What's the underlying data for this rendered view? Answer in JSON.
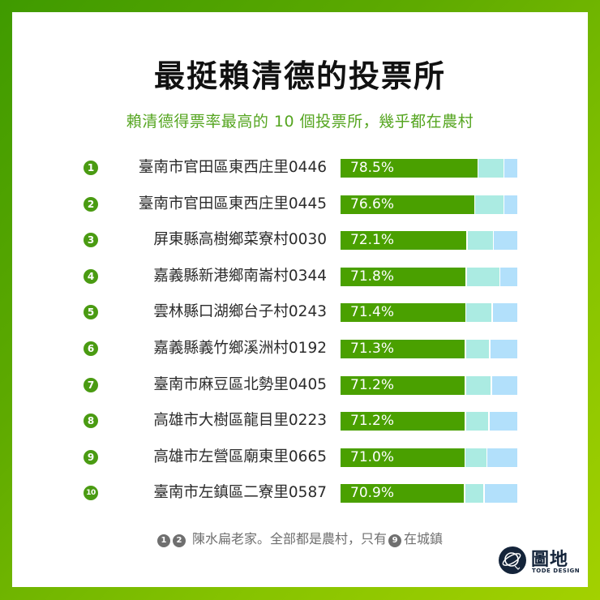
{
  "header": {
    "title": "最挺賴清德的投票所",
    "subtitle": "賴清德得票率最高的 10 個投票所，幾乎都在農村"
  },
  "colors": {
    "primary_green": "#4aa000",
    "teal_segment": "#abebe2",
    "blue_segment": "#b2e0fb",
    "rank_badge": "#4a9b12",
    "subtitle": "#55a520",
    "border_gradient_start": "#3f9a00",
    "border_gradient_end": "#a3d100",
    "logo_navy": "#14243a"
  },
  "rows": [
    {
      "rank": "1",
      "name": "臺南市官田區東西庄里0446",
      "pct_label": "78.5%"
    },
    {
      "rank": "2",
      "name": "臺南市官田區東西庄里0445",
      "pct_label": "76.6%"
    },
    {
      "rank": "3",
      "name": "屏東縣高樹鄉菜寮村0030",
      "pct_label": "72.1%"
    },
    {
      "rank": "4",
      "name": "嘉義縣新港鄉南崙村0344",
      "pct_label": "71.8%"
    },
    {
      "rank": "5",
      "name": "雲林縣口湖鄉台子村0243",
      "pct_label": "71.4%"
    },
    {
      "rank": "6",
      "name": "嘉義縣義竹鄉溪洲村0192",
      "pct_label": "71.3%"
    },
    {
      "rank": "7",
      "name": "臺南市麻豆區北勢里0405",
      "pct_label": "71.2%"
    },
    {
      "rank": "8",
      "name": "高雄市大樹區龍目里0223",
      "pct_label": "71.2%"
    },
    {
      "rank": "9",
      "name": "高雄市左營區廟東里0665",
      "pct_label": "71.0%"
    },
    {
      "rank": "10",
      "name": "臺南市左鎮區二寮里0587",
      "pct_label": "70.9%"
    }
  ],
  "chart_data": {
    "type": "bar",
    "orientation": "horizontal",
    "stacked": true,
    "title": "最挺賴清德的投票所",
    "subtitle": "賴清德得票率最高的 10 個投票所，幾乎都在農村",
    "categories": [
      "臺南市官田區東西庄里0446",
      "臺南市官田區東西庄里0445",
      "屏東縣高樹鄉菜寮村0030",
      "嘉義縣新港鄉南崙村0344",
      "雲林縣口湖鄉台子村0243",
      "嘉義縣義竹鄉溪洲村0192",
      "臺南市麻豆區北勢里0405",
      "高雄市大樹區龍目里0223",
      "高雄市左營區廟東里0665",
      "臺南市左鎮區二寮里0587"
    ],
    "series": [
      {
        "name": "賴清德",
        "color": "#4aa000",
        "values": [
          78.5,
          76.6,
          72.1,
          71.8,
          71.4,
          71.3,
          71.2,
          71.2,
          71.0,
          70.9
        ]
      },
      {
        "name": "teal segment",
        "color": "#abebe2",
        "values": [
          14.2,
          16.0,
          14.6,
          18.5,
          14.6,
          13.3,
          14.2,
          12.8,
          12.0,
          10.4
        ]
      },
      {
        "name": "blue segment",
        "color": "#b2e0fb",
        "values": [
          7.3,
          7.4,
          13.3,
          9.7,
          14.0,
          15.4,
          14.6,
          16.0,
          17.0,
          18.7
        ]
      }
    ],
    "xlim": [
      0,
      100
    ],
    "legend": "none",
    "grid": false,
    "annotation": "❶ ❷ 陳水扁老家。全部都是農村，只有❾在城鎮"
  },
  "footer": {
    "note_badges": [
      "1",
      "2"
    ],
    "note_text_1": "陳水扁老家。全部都是農村，只有",
    "note_badge_mid": "9",
    "note_text_2": "在城鎮"
  },
  "logo": {
    "icon": "planet-icon",
    "name_cn": "圖地",
    "name_en": "TODE DESIGN"
  }
}
